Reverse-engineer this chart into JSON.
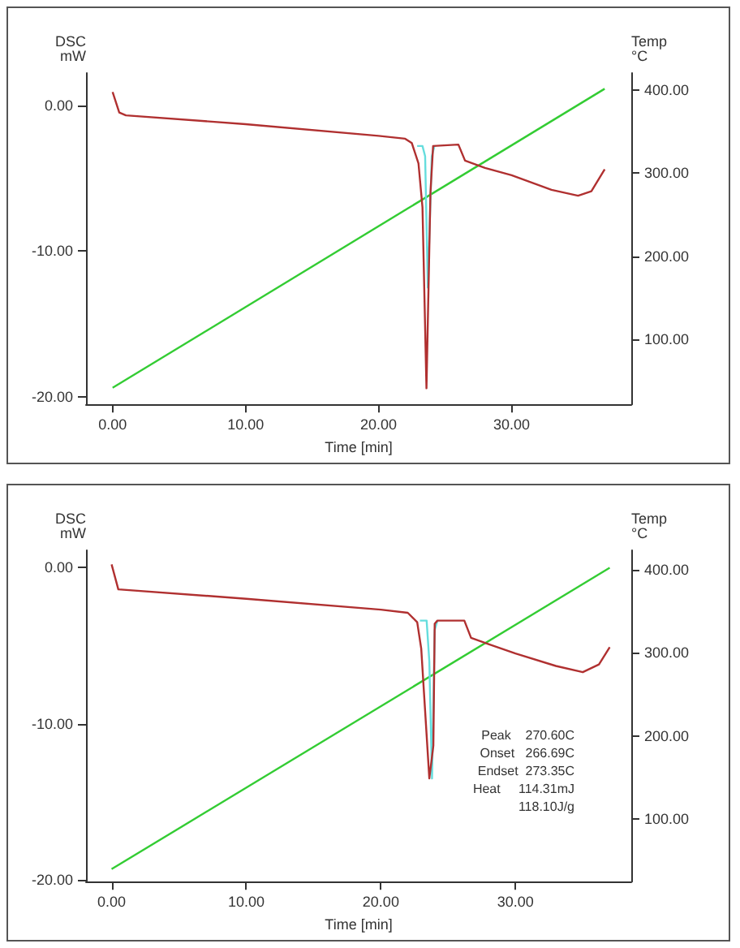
{
  "chart_data": [
    {
      "type": "line",
      "xlabel": "Time [min]",
      "ylabel": "DSC\nmW",
      "y2label": "Temp\n°C",
      "marker": "none",
      "xlim": [
        -2,
        39
      ],
      "xticks": [
        {
          "value": 0,
          "label": "0.00"
        },
        {
          "value": 10,
          "label": "10.00"
        },
        {
          "value": 20,
          "label": "20.00"
        },
        {
          "value": 30,
          "label": "30.00"
        }
      ],
      "ylim": [
        -20.5,
        2.2
      ],
      "yticks": [
        {
          "value": -20,
          "label": "-20.00"
        },
        {
          "value": -10,
          "label": "-10.00"
        },
        {
          "value": 0,
          "label": "0.00"
        }
      ],
      "y2lim": [
        21,
        421
      ],
      "y2ticks": [
        {
          "value": 100,
          "label": "100.00"
        },
        {
          "value": 200,
          "label": "200.00"
        },
        {
          "value": 300,
          "label": "300.00"
        },
        {
          "value": 400,
          "label": "400.00"
        }
      ],
      "series": [
        {
          "color": "#b03030",
          "x": [
            0,
            0.5,
            1,
            10,
            20,
            22,
            22.5,
            23,
            23.3,
            23.6,
            23.9,
            24.1,
            26,
            26.5,
            28,
            30,
            33,
            35,
            36,
            37
          ],
          "values": [
            0.9,
            -0.5,
            -0.7,
            -1.3,
            -2.1,
            -2.3,
            -2.6,
            -4,
            -7,
            -19.4,
            -6,
            -2.8,
            -2.7,
            -3.8,
            -4.3,
            -4.8,
            -5.8,
            -6.2,
            -5.9,
            -4.4
          ]
        },
        {
          "color": "#66dddd",
          "x": [
            22.9,
            23.3,
            23.5,
            23.7,
            24.0,
            24.2
          ],
          "values": [
            -2.8,
            -2.8,
            -3.5,
            -12.5,
            -3.5,
            -2.8
          ]
        },
        {
          "color": "#33cc33",
          "axis": "y2",
          "x": [
            0,
            37
          ],
          "values": [
            41,
            402
          ]
        }
      ]
    },
    {
      "type": "line",
      "xlabel": "Time [min]",
      "ylabel": "DSC\nmW",
      "y2label": "Temp\n°C",
      "marker": "none",
      "xlim": [
        -1.9,
        38.6
      ],
      "xticks": [
        {
          "value": 0,
          "label": "0.00"
        },
        {
          "value": 10,
          "label": "10.00"
        },
        {
          "value": 20,
          "label": "20.00"
        },
        {
          "value": 30,
          "label": "30.00"
        }
      ],
      "ylim": [
        -20.1,
        1.1
      ],
      "yticks": [
        {
          "value": -20,
          "label": "-20.00"
        },
        {
          "value": -10,
          "label": "-10.00"
        },
        {
          "value": 0,
          "label": "0.00"
        }
      ],
      "y2lim": [
        25,
        423
      ],
      "y2ticks": [
        {
          "value": 100,
          "label": "100.00"
        },
        {
          "value": 200,
          "label": "200.00"
        },
        {
          "value": 300,
          "label": "300.00"
        },
        {
          "value": 400,
          "label": "400.00"
        }
      ],
      "annotations": [
        "Peak    270.60C",
        "Onset   266.69C",
        "Endset  273.35C",
        "Heat     114.31mJ",
        "         118.10J/g"
      ],
      "series": [
        {
          "color": "#b03030",
          "x": [
            0,
            0.5,
            10,
            20,
            22,
            22.7,
            23,
            23.6,
            23.9,
            24,
            24.2,
            26.2,
            26.7,
            28,
            30,
            33,
            35,
            36.2,
            37
          ],
          "values": [
            0.2,
            -1.4,
            -2,
            -2.7,
            -2.9,
            -3.5,
            -5.2,
            -13.5,
            -11.4,
            -3.6,
            -3.4,
            -3.4,
            -4.5,
            -4.9,
            -5.5,
            -6.3,
            -6.7,
            -6.2,
            -5.1
          ]
        },
        {
          "color": "#66dddd",
          "x": [
            22.9,
            23.4,
            23.6,
            23.8,
            24.0,
            24.2
          ],
          "values": [
            -3.4,
            -3.4,
            -6,
            -13.5,
            -4,
            -3.4
          ]
        },
        {
          "color": "#33cc33",
          "axis": "y2",
          "x": [
            0,
            37
          ],
          "values": [
            40,
            402
          ]
        }
      ]
    }
  ]
}
